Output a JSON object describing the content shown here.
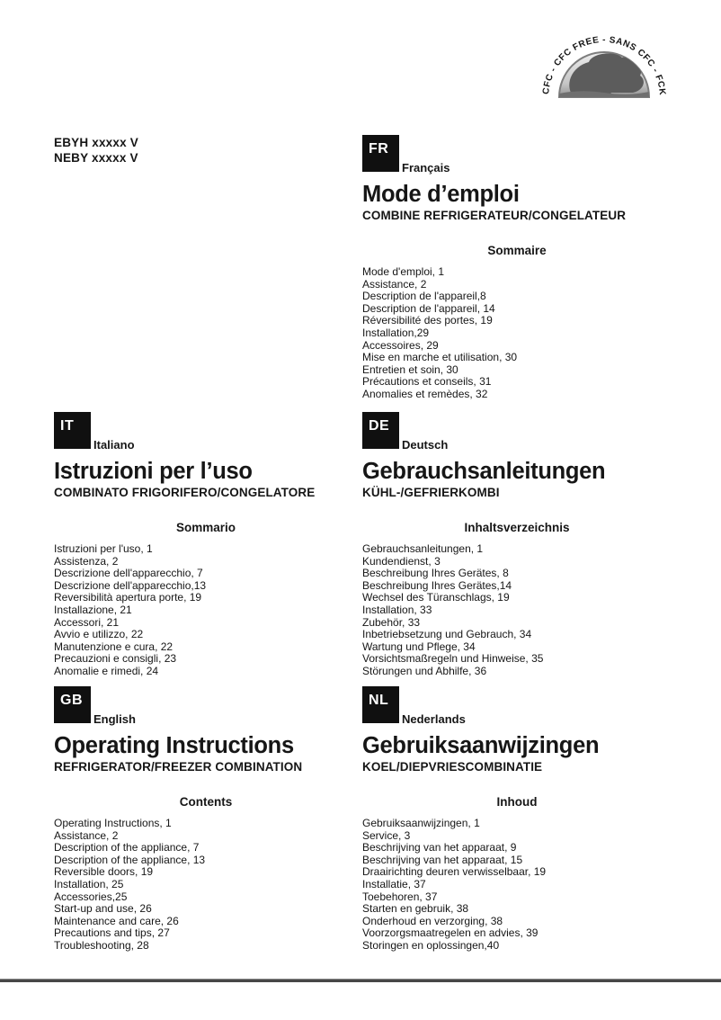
{
  "models": [
    "EBYH xxxxx V",
    "NEBY xxxxx V"
  ],
  "logo": {
    "arc_text": "SENZA CFC - CFC FREE - SANS CFC - FCKW FREI"
  },
  "sections": {
    "fr": {
      "code": "FR",
      "language": "Français",
      "title": "Mode d’emploi",
      "subtitle": "COMBINE REFRIGERATEUR/CONGELATEUR",
      "contents_heading": "Sommaire",
      "items": [
        "Mode d'emploi, 1",
        "Assistance, 2",
        "Description de l'appareil,8",
        "Description de l'appareil, 14",
        "Réversibilité des portes, 19",
        "Installation,29",
        "Accessoires, 29",
        "Mise en marche et utilisation, 30",
        "Entretien et soin, 30",
        "Précautions et conseils, 31",
        "Anomalies et remèdes, 32"
      ]
    },
    "it": {
      "code": "IT",
      "language": "Italiano",
      "title": "Istruzioni per l’uso",
      "subtitle": "COMBINATO FRIGORIFERO/CONGELATORE",
      "contents_heading": "Sommario",
      "items": [
        "Istruzioni per l'uso, 1",
        "Assistenza, 2",
        "Descrizione dell'apparecchio, 7",
        "Descrizione dell'apparecchio,13",
        "Reversibilità apertura porte, 19",
        "Installazione, 21",
        "Accessori, 21",
        "Avvio e utilizzo, 22",
        "Manutenzione e cura, 22",
        "Precauzioni e consigli, 23",
        "Anomalie e rimedi, 24"
      ]
    },
    "de": {
      "code": "DE",
      "language": "Deutsch",
      "title": "Gebrauchsanleitungen",
      "subtitle": "KÜHL-/GEFRIERKOMBI",
      "contents_heading": "Inhaltsverzeichnis",
      "items": [
        "Gebrauchsanleitungen, 1",
        "Kundendienst, 3",
        "Beschreibung Ihres Gerätes, 8",
        "Beschreibung Ihres Gerätes,14",
        "Wechsel des Türanschlags, 19",
        "Installation, 33",
        "Zubehör, 33",
        "Inbetriebsetzung und Gebrauch, 34",
        "Wartung und Pflege, 34",
        "Vorsichtsmaßregeln und Hinweise, 35",
        "Störungen und Abhilfe, 36"
      ]
    },
    "gb": {
      "code": "GB",
      "language": "English",
      "title": "Operating Instructions",
      "subtitle": "REFRIGERATOR/FREEZER COMBINATION",
      "contents_heading": "Contents",
      "items": [
        "Operating Instructions, 1",
        "Assistance, 2",
        "Description of the appliance, 7",
        "Description of the appliance, 13",
        "Reversible doors, 19",
        "Installation, 25",
        "Accessories,25",
        "Start-up and use, 26",
        "Maintenance and care, 26",
        "Precautions and tips, 27",
        "Troubleshooting, 28"
      ]
    },
    "nl": {
      "code": "NL",
      "language": "Nederlands",
      "title": "Gebruiksaanwijzingen",
      "subtitle": "KOEL/DIEPVRIESCOMBINATIE",
      "contents_heading": "Inhoud",
      "items": [
        "Gebruiksaanwijzingen, 1",
        "Service, 3",
        "Beschrijving van het apparaat, 9",
        "Beschrijving van het apparaat, 15",
        "Draairichting deuren verwisselbaar, 19",
        "Installatie, 37",
        "Toebehoren, 37",
        "Starten en gebruik, 38",
        "Onderhoud en verzorging, 38",
        "Voorzorgsmaatregelen en advies, 39",
        "Storingen en oplossingen,40"
      ]
    }
  }
}
